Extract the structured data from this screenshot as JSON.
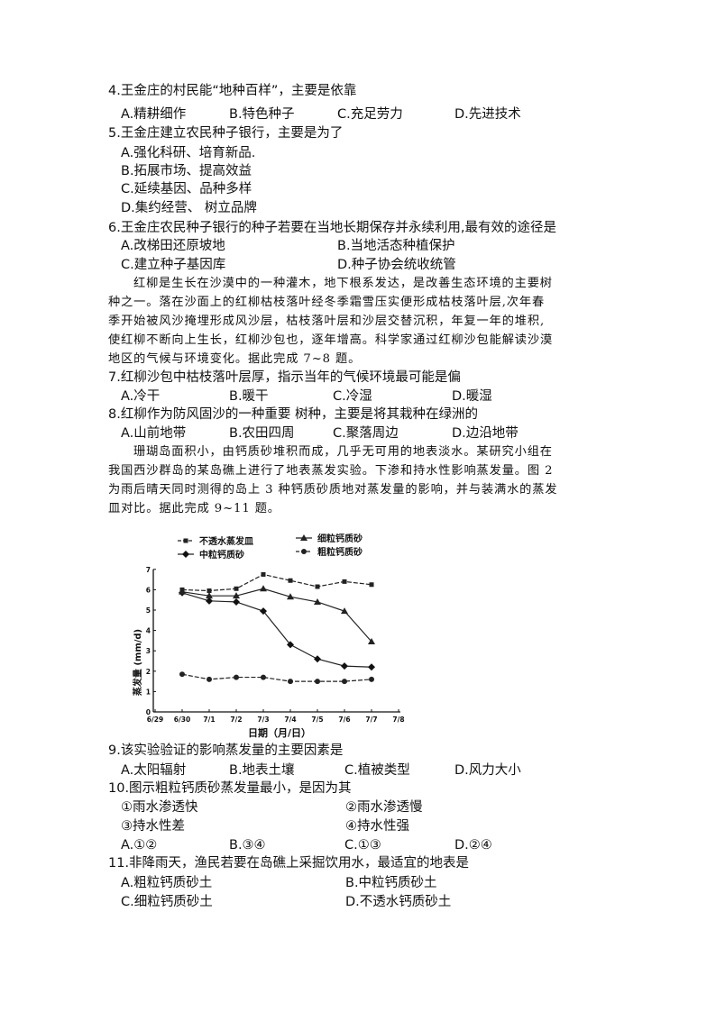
{
  "questions": {
    "q4": {
      "stem": "4.王金庄的村民能“地种百样”，主要是依靠",
      "options": [
        "A.精耕细作",
        "B.特色种子",
        "C.充足劳力",
        "D.先进技术"
      ]
    },
    "q5": {
      "stem": "5.王金庄建立农民种子银行，主要是为了",
      "options": [
        "A.强化科研、培育新品.",
        "B.拓展市场、提高效益",
        "C.延续基因、品种多样",
        "D.集约经营、 树立品牌"
      ]
    },
    "q6": {
      "stem": "6.王金庄农民种子银行的种子若要在当地长期保存并永续利用,最有效的途径是",
      "options": [
        "A.改梯田还原坡地",
        "B.当地活态种植保护",
        "C.建立种子基因库",
        "D.种子协会统收统管"
      ]
    },
    "passage1": [
      "红柳是生长在沙漠中的一种灌木，地下根系发达，是改善生态环境的主要树",
      "种之一。落在沙面上的红柳枯枝落叶经冬季霜雪压实便形成枯枝落叶层,次年春",
      "季开始被风沙掩埋形成风沙层，枯枝落叶层和沙层交替沉积，年复一年的堆积,",
      "使红柳不断向上生长，红柳沙包也，逐年增高。科学家通过红柳沙包能解读沙漠",
      "地区的气候与环境变化。据此完成 7~8 题。"
    ],
    "q7": {
      "stem": "7.红柳沙包中枯枝落叶层厚，指示当年的气候环境最可能是偏",
      "options": [
        "A.冷干",
        "B.暖干",
        "C.冷湿",
        "D.暖湿"
      ]
    },
    "q8": {
      "stem": "8.红柳作为防风固沙的一种重要 树种，主要是将其栽种在绿洲的",
      "options": [
        "A.山前地带",
        "B.农田四周",
        "C.聚落周边",
        "D.边沿地带"
      ]
    },
    "passage2": [
      "珊瑚岛面积小，由钙质砂堆积而成，几乎无可用的地表淡水。某研究小组在",
      "我国西沙群岛的某岛礁上进行了地表蒸发实验。下渗和持水性影响蒸发量。图 2",
      "为雨后晴天同时测得的岛上 3 种钙质砂质地对蒸发量的影响，并与装满水的蒸发",
      "皿对比。据此完成 9~11 题。"
    ],
    "q9": {
      "stem": "9.该实验验证的影响蒸发量的主要因素是",
      "options": [
        "A.太阳辐射",
        "B.地表土壤",
        "C.植被类型",
        "D.风力大小"
      ]
    },
    "q10": {
      "stem": "10.图示粗粒钙质砂蒸发量最小，是因为其",
      "statements": [
        "①雨水渗透快",
        "②雨水渗透慢",
        "③持水性差",
        "④持水性强"
      ],
      "options": [
        "A.①②",
        "B.③④",
        "C.①③",
        "D.②④"
      ]
    },
    "q11": {
      "stem": "11.非降雨天，渔民若要在岛礁上采掘饮用水，最适宜的地表是",
      "options": [
        "A.粗粒钙质砂土",
        "B.中粒钙质砂土",
        "C.细粒钙质砂土",
        "D.不透水钙质砂土"
      ]
    }
  },
  "chart_data": {
    "type": "line",
    "xlabel": "日期（月/日）",
    "ylabel": "蒸发量 (mm/d)",
    "x_ticks": [
      "6/29",
      "6/30",
      "7/1",
      "7/2",
      "7/3",
      "7/4",
      "7/5",
      "7/6",
      "7/7",
      "7/8"
    ],
    "y_ticks": [
      "0",
      "1",
      "2",
      "3",
      "4",
      "5",
      "6",
      "7"
    ],
    "ylim": [
      0,
      7
    ],
    "x": [
      "6/30",
      "7/1",
      "7/2",
      "7/3",
      "7/4",
      "7/5",
      "7/6",
      "7/7"
    ],
    "legend_position": "top",
    "series": [
      {
        "name": "不透水蒸发皿",
        "marker": "square",
        "dash": true,
        "values": [
          6.0,
          5.95,
          6.05,
          6.75,
          6.45,
          6.15,
          6.4,
          6.25
        ]
      },
      {
        "name": "中粒钙质砂",
        "marker": "diamond",
        "dash": false,
        "values": [
          5.85,
          5.45,
          5.4,
          4.95,
          3.3,
          2.6,
          2.25,
          2.2
        ]
      },
      {
        "name": "细粒钙质砂",
        "marker": "triangle",
        "dash": false,
        "values": [
          5.9,
          5.7,
          5.7,
          6.05,
          5.65,
          5.4,
          4.95,
          3.45
        ]
      },
      {
        "name": "粗粒钙质砂",
        "marker": "circle",
        "dash": true,
        "values": [
          1.85,
          1.6,
          1.7,
          1.7,
          1.5,
          1.5,
          1.5,
          1.6
        ]
      }
    ]
  }
}
